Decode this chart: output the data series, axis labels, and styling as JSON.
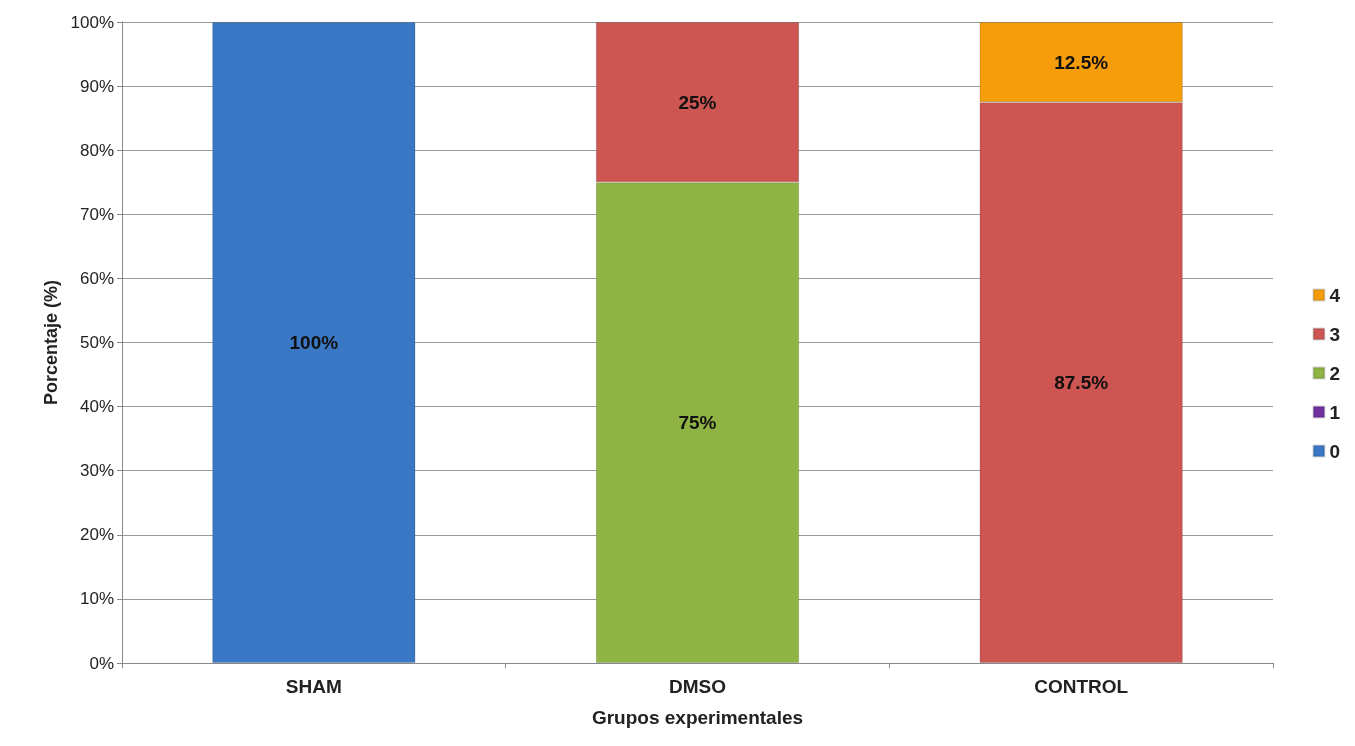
{
  "chart_data": {
    "type": "bar",
    "stacked": true,
    "xlabel": "Grupos experimentales",
    "ylabel": "Porcentaje (%)",
    "categories": [
      "SHAM",
      "DMSO",
      "CONTROL"
    ],
    "series": [
      {
        "name": "0",
        "color": "#3a78c5",
        "values": [
          100,
          null,
          null
        ],
        "value_labels": [
          "100%",
          null,
          null
        ]
      },
      {
        "name": "1",
        "color": "#7030a0",
        "values": [
          null,
          null,
          null
        ]
      },
      {
        "name": "2",
        "color": "#8fb443",
        "values": [
          null,
          75,
          null
        ],
        "value_labels": [
          null,
          "75%",
          null
        ]
      },
      {
        "name": "3",
        "color": "#cd5652",
        "values": [
          null,
          25,
          87.5
        ],
        "value_labels": [
          null,
          "25%",
          "87.5%"
        ]
      },
      {
        "name": "4",
        "color": "#f59d0b",
        "values": [
          null,
          null,
          12.5
        ],
        "value_labels": [
          null,
          null,
          "12.5%"
        ]
      }
    ],
    "ylim": [
      0,
      100
    ],
    "yticks": [
      {
        "value": 0,
        "label": "0%"
      },
      {
        "value": 10,
        "label": "10%"
      },
      {
        "value": 20,
        "label": "20%"
      },
      {
        "value": 30,
        "label": "30%"
      },
      {
        "value": 40,
        "label": "40%"
      },
      {
        "value": 50,
        "label": "50%"
      },
      {
        "value": 60,
        "label": "60%"
      },
      {
        "value": 70,
        "label": "70%"
      },
      {
        "value": 80,
        "label": "80%"
      },
      {
        "value": 90,
        "label": "90%"
      },
      {
        "value": 100,
        "label": "100%"
      }
    ],
    "grid": "y",
    "legend": "right"
  }
}
